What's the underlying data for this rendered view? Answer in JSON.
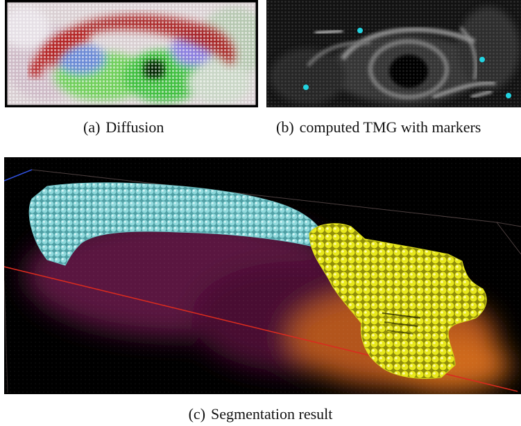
{
  "figure": {
    "panels": [
      {
        "id": "a",
        "label": "(a)",
        "caption": "Diffusion"
      },
      {
        "id": "b",
        "label": "(b)",
        "caption": "computed TMG with markers"
      },
      {
        "id": "c",
        "label": "(c)",
        "caption": "Segmentation result"
      }
    ],
    "colors": {
      "background": "#ffffff",
      "panel_bg": "#000000",
      "marker": "#22d3e0",
      "segment_cyan": "#7fd3d6",
      "segment_yellow": "#f2f21a",
      "volume_magenta": "#5a1640",
      "volume_orange": "#b3541a",
      "box_red": "#d92b1f"
    },
    "panel_b_marker_count": 4
  }
}
